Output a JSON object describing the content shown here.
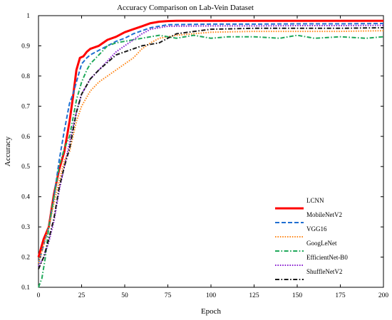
{
  "chart_data": {
    "type": "line",
    "title": "Accuracy  Comparison on Lab-Vein Dataset",
    "xlabel": "Epoch",
    "ylabel": "Accuracy",
    "xlim": [
      0,
      200
    ],
    "ylim": [
      0.1,
      1.0
    ],
    "x_ticks": [
      0,
      25,
      50,
      75,
      100,
      125,
      150,
      175,
      200
    ],
    "y_ticks": [
      0.1,
      0.2,
      0.3,
      0.4,
      0.5,
      0.6,
      0.7,
      0.8,
      0.9,
      1
    ],
    "grid": false,
    "legend_position": "bottom-right",
    "series": [
      {
        "name": "LCNN",
        "color": "#ff0000",
        "dash": "solid",
        "x": [
          0,
          3,
          6,
          9,
          12,
          15,
          18,
          20,
          22,
          24,
          26,
          28,
          30,
          35,
          40,
          45,
          50,
          55,
          60,
          65,
          70,
          75,
          80,
          100,
          125,
          150,
          175,
          200
        ],
        "values": [
          0.2,
          0.26,
          0.3,
          0.41,
          0.49,
          0.55,
          0.65,
          0.73,
          0.82,
          0.86,
          0.865,
          0.88,
          0.89,
          0.9,
          0.92,
          0.93,
          0.945,
          0.955,
          0.965,
          0.975,
          0.98,
          0.982,
          0.983,
          0.983,
          0.983,
          0.983,
          0.983,
          0.983
        ]
      },
      {
        "name": "MobileNetV2",
        "color": "#1f6fd1",
        "dash": "dashed",
        "x": [
          0,
          3,
          6,
          9,
          12,
          15,
          18,
          20,
          22,
          25,
          28,
          30,
          35,
          40,
          45,
          50,
          55,
          60,
          65,
          70,
          75,
          100,
          125,
          150,
          175,
          200
        ],
        "values": [
          0.18,
          0.24,
          0.3,
          0.4,
          0.52,
          0.62,
          0.71,
          0.74,
          0.78,
          0.84,
          0.86,
          0.87,
          0.885,
          0.9,
          0.915,
          0.925,
          0.94,
          0.95,
          0.96,
          0.965,
          0.97,
          0.972,
          0.972,
          0.973,
          0.973,
          0.974
        ]
      },
      {
        "name": "VGG16",
        "color": "#ff8a1f",
        "dash": "dotted",
        "x": [
          0,
          3,
          6,
          9,
          12,
          15,
          18,
          20,
          22,
          25,
          28,
          30,
          35,
          40,
          45,
          50,
          55,
          60,
          65,
          70,
          75,
          80,
          100,
          125,
          150,
          175,
          200
        ],
        "values": [
          0.18,
          0.24,
          0.3,
          0.38,
          0.45,
          0.52,
          0.55,
          0.6,
          0.65,
          0.7,
          0.73,
          0.75,
          0.78,
          0.8,
          0.82,
          0.84,
          0.86,
          0.89,
          0.91,
          0.925,
          0.93,
          0.935,
          0.945,
          0.948,
          0.948,
          0.948,
          0.95
        ]
      },
      {
        "name": "GoogLeNet",
        "color": "#1fa85a",
        "dash": "dashdot",
        "x": [
          0,
          2,
          4,
          6,
          9,
          12,
          15,
          18,
          20,
          22,
          25,
          28,
          30,
          35,
          40,
          45,
          50,
          55,
          60,
          65,
          70,
          75,
          80,
          90,
          100,
          110,
          125,
          140,
          150,
          160,
          175,
          190,
          200
        ],
        "values": [
          0.1,
          0.13,
          0.2,
          0.3,
          0.4,
          0.5,
          0.56,
          0.6,
          0.66,
          0.72,
          0.78,
          0.82,
          0.84,
          0.87,
          0.9,
          0.91,
          0.915,
          0.92,
          0.925,
          0.93,
          0.935,
          0.93,
          0.925,
          0.935,
          0.925,
          0.93,
          0.93,
          0.925,
          0.935,
          0.925,
          0.93,
          0.925,
          0.93
        ]
      },
      {
        "name": "EfficientNet-B0",
        "color": "#8a1fd1",
        "dash": "dotted",
        "x": [
          0,
          3,
          6,
          9,
          12,
          15,
          18,
          20,
          22,
          25,
          28,
          30,
          35,
          40,
          45,
          50,
          55,
          60,
          65,
          70,
          75,
          100,
          125,
          150,
          175,
          200
        ],
        "values": [
          0.17,
          0.2,
          0.25,
          0.32,
          0.42,
          0.5,
          0.58,
          0.63,
          0.68,
          0.74,
          0.77,
          0.79,
          0.82,
          0.85,
          0.88,
          0.9,
          0.92,
          0.94,
          0.955,
          0.96,
          0.965,
          0.966,
          0.966,
          0.967,
          0.967,
          0.968
        ]
      },
      {
        "name": "ShuffleNetV2",
        "color": "#1a1a1a",
        "dash": "dashdot",
        "x": [
          0,
          3,
          6,
          9,
          12,
          15,
          18,
          20,
          22,
          25,
          28,
          30,
          35,
          40,
          45,
          50,
          55,
          60,
          65,
          70,
          75,
          80,
          100,
          125,
          150,
          175,
          200
        ],
        "values": [
          0.16,
          0.2,
          0.26,
          0.33,
          0.43,
          0.5,
          0.56,
          0.62,
          0.68,
          0.74,
          0.77,
          0.79,
          0.82,
          0.845,
          0.87,
          0.88,
          0.89,
          0.9,
          0.905,
          0.91,
          0.925,
          0.94,
          0.955,
          0.958,
          0.958,
          0.958,
          0.96
        ]
      }
    ]
  }
}
